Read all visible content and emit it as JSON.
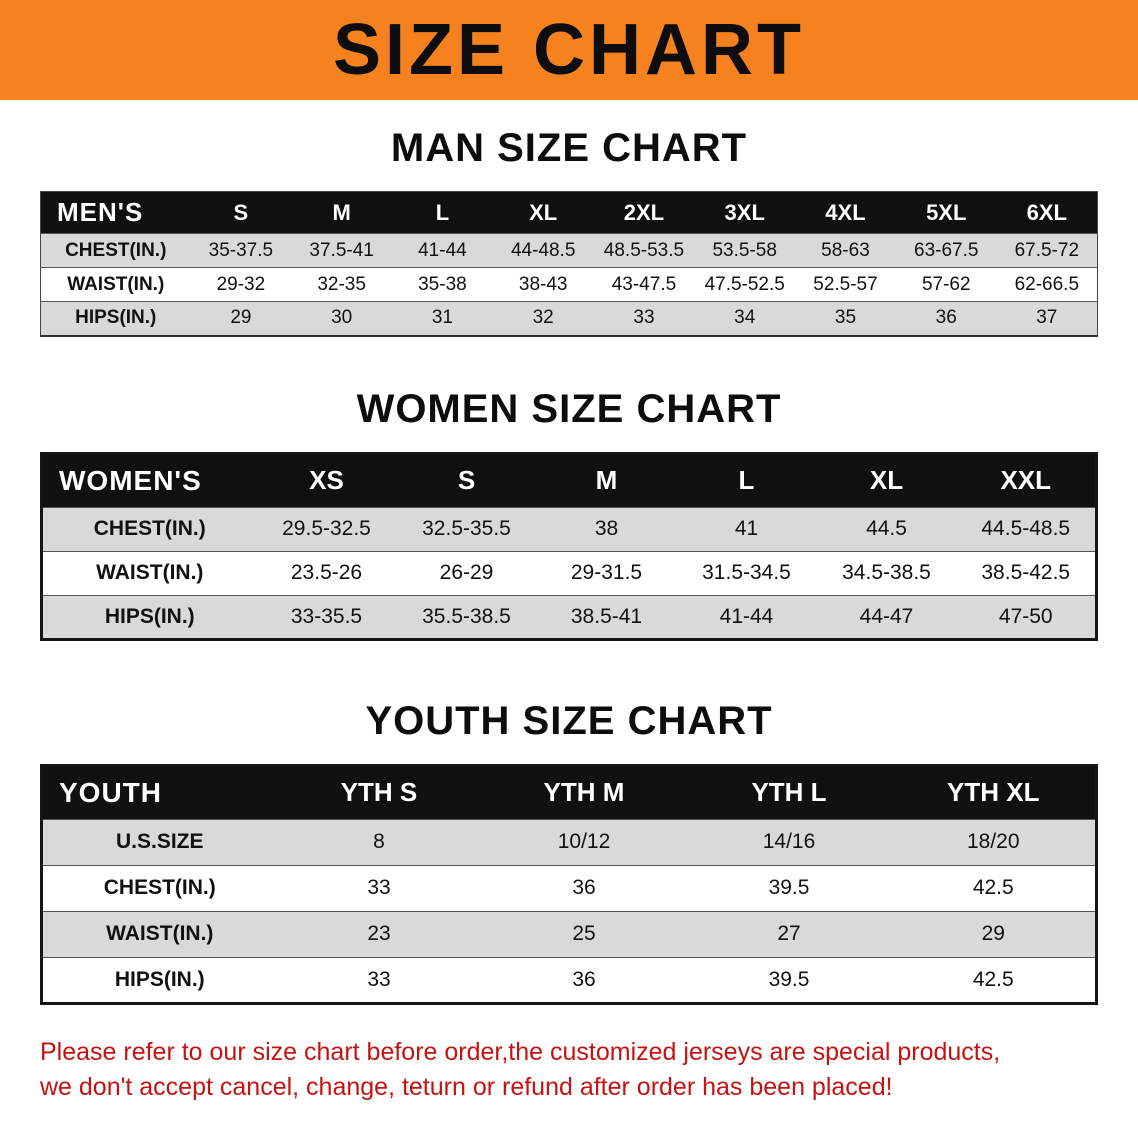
{
  "banner": {
    "title": "SIZE CHART",
    "bg_color": "#f5821f"
  },
  "colors": {
    "header_bg": "#101010",
    "row_stripe": "#d9d9d9",
    "note_red": "#c51212"
  },
  "sections": [
    {
      "heading": "MAN SIZE CHART",
      "header": [
        "MEN'S",
        "S",
        "M",
        "L",
        "XL",
        "2XL",
        "3XL",
        "4XL",
        "5XL",
        "6XL"
      ],
      "rows": [
        [
          "CHEST(IN.)",
          "35-37.5",
          "37.5-41",
          "41-44",
          "44-48.5",
          "48.5-53.5",
          "53.5-58",
          "58-63",
          "63-67.5",
          "67.5-72"
        ],
        [
          "WAIST(IN.)",
          "29-32",
          "32-35",
          "35-38",
          "38-43",
          "43-47.5",
          "47.5-52.5",
          "52.5-57",
          "57-62",
          "62-66.5"
        ],
        [
          "HIPS(IN.)",
          "29",
          "30",
          "31",
          "32",
          "33",
          "34",
          "35",
          "36",
          "37"
        ]
      ]
    },
    {
      "heading": "WOMEN SIZE CHART",
      "header": [
        "WOMEN'S",
        "XS",
        "S",
        "M",
        "L",
        "XL",
        "XXL"
      ],
      "rows": [
        [
          "CHEST(IN.)",
          "29.5-32.5",
          "32.5-35.5",
          "38",
          "41",
          "44.5",
          "44.5-48.5"
        ],
        [
          "WAIST(IN.)",
          "23.5-26",
          "26-29",
          "29-31.5",
          "31.5-34.5",
          "34.5-38.5",
          "38.5-42.5"
        ],
        [
          "HIPS(IN.)",
          "33-35.5",
          "35.5-38.5",
          "38.5-41",
          "41-44",
          "44-47",
          "47-50"
        ]
      ]
    },
    {
      "heading": "YOUTH SIZE CHART",
      "header": [
        "YOUTH",
        "YTH S",
        "YTH M",
        "YTH L",
        "YTH XL"
      ],
      "rows": [
        [
          "U.S.SIZE",
          "8",
          "10/12",
          "14/16",
          "18/20"
        ],
        [
          "CHEST(IN.)",
          "33",
          "36",
          "39.5",
          "42.5"
        ],
        [
          "WAIST(IN.)",
          "23",
          "25",
          "27",
          "29"
        ],
        [
          "HIPS(IN.)",
          "33",
          "36",
          "39.5",
          "42.5"
        ]
      ]
    }
  ],
  "footer": {
    "line1": "Please refer to our size chart before order,the customized jerseys are special products,",
    "line2": "we don't accept cancel, change, teturn or refund after order has been placed!"
  }
}
